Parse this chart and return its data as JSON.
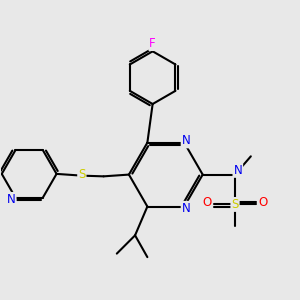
{
  "bg_color": "#e8e8e8",
  "atom_colors": {
    "N": "#0000ee",
    "S": "#cccc00",
    "O": "#ff0000",
    "F": "#ff00ff",
    "C": "#000000"
  },
  "bond_color": "#000000",
  "bond_width": 1.5,
  "dbo": 0.07
}
